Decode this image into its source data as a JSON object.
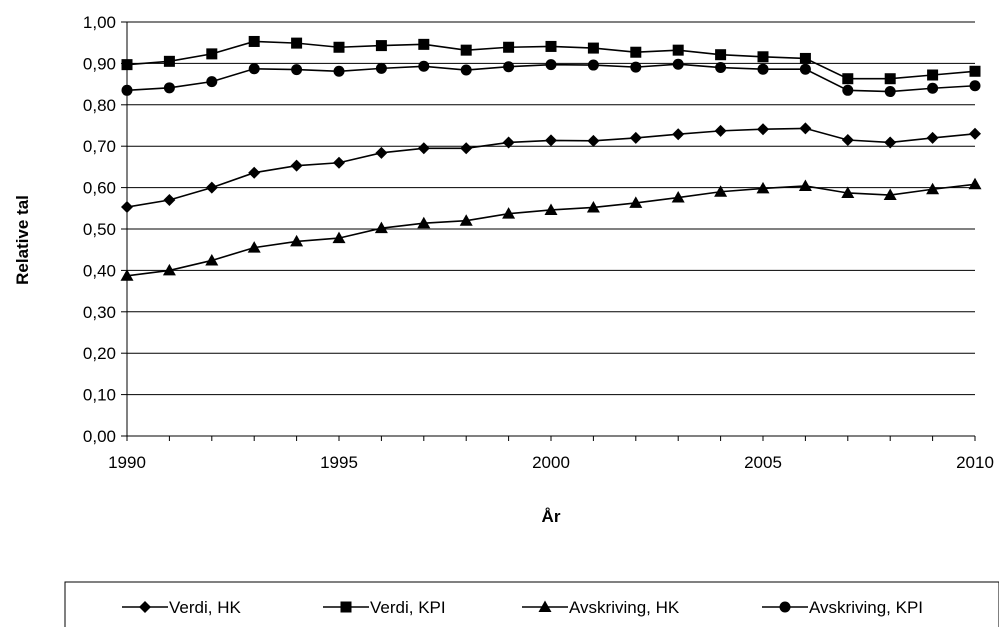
{
  "chart_data": {
    "type": "line",
    "title": "",
    "xlabel": "År",
    "ylabel": "Relative tal",
    "xlim": [
      1990,
      2010
    ],
    "ylim": [
      0,
      1
    ],
    "x_ticks": [
      1990,
      1995,
      2000,
      2005,
      2010
    ],
    "x_tick_labels": [
      "1990",
      "1995",
      "2000",
      "2005",
      "2010"
    ],
    "y_ticks": [
      0,
      0.1,
      0.2,
      0.3,
      0.4,
      0.5,
      0.6,
      0.7,
      0.8,
      0.9,
      1.0
    ],
    "y_tick_labels": [
      "0,00",
      "0,10",
      "0,20",
      "0,30",
      "0,40",
      "0,50",
      "0,60",
      "0,70",
      "0,80",
      "0,90",
      "1,00"
    ],
    "grid": "horizontal",
    "legend_position": "bottom",
    "x": [
      1990,
      1991,
      1992,
      1993,
      1994,
      1995,
      1996,
      1997,
      1998,
      1999,
      2000,
      2001,
      2002,
      2003,
      2004,
      2005,
      2006,
      2007,
      2008,
      2009,
      2010
    ],
    "series": [
      {
        "name": "Verdi, HK",
        "marker": "diamond",
        "values": [
          0.553,
          0.57,
          0.6,
          0.636,
          0.653,
          0.66,
          0.684,
          0.695,
          0.695,
          0.709,
          0.714,
          0.713,
          0.72,
          0.729,
          0.737,
          0.741,
          0.743,
          0.715,
          0.709,
          0.72,
          0.73
        ]
      },
      {
        "name": "Verdi, KPI",
        "marker": "square",
        "values": [
          0.897,
          0.905,
          0.923,
          0.953,
          0.949,
          0.939,
          0.943,
          0.946,
          0.932,
          0.939,
          0.941,
          0.937,
          0.927,
          0.932,
          0.921,
          0.916,
          0.912,
          0.863,
          0.863,
          0.872,
          0.881
        ]
      },
      {
        "name": "Avskriving, HK",
        "marker": "triangle",
        "values": [
          0.387,
          0.4,
          0.424,
          0.455,
          0.47,
          0.478,
          0.502,
          0.514,
          0.52,
          0.537,
          0.546,
          0.552,
          0.563,
          0.576,
          0.59,
          0.598,
          0.604,
          0.587,
          0.582,
          0.596,
          0.608
        ]
      },
      {
        "name": "Avskriving, KPI",
        "marker": "circle",
        "values": [
          0.835,
          0.841,
          0.856,
          0.887,
          0.885,
          0.881,
          0.888,
          0.893,
          0.884,
          0.892,
          0.897,
          0.896,
          0.891,
          0.898,
          0.89,
          0.886,
          0.886,
          0.835,
          0.832,
          0.84,
          0.846
        ]
      }
    ],
    "line_color": "#000000"
  }
}
